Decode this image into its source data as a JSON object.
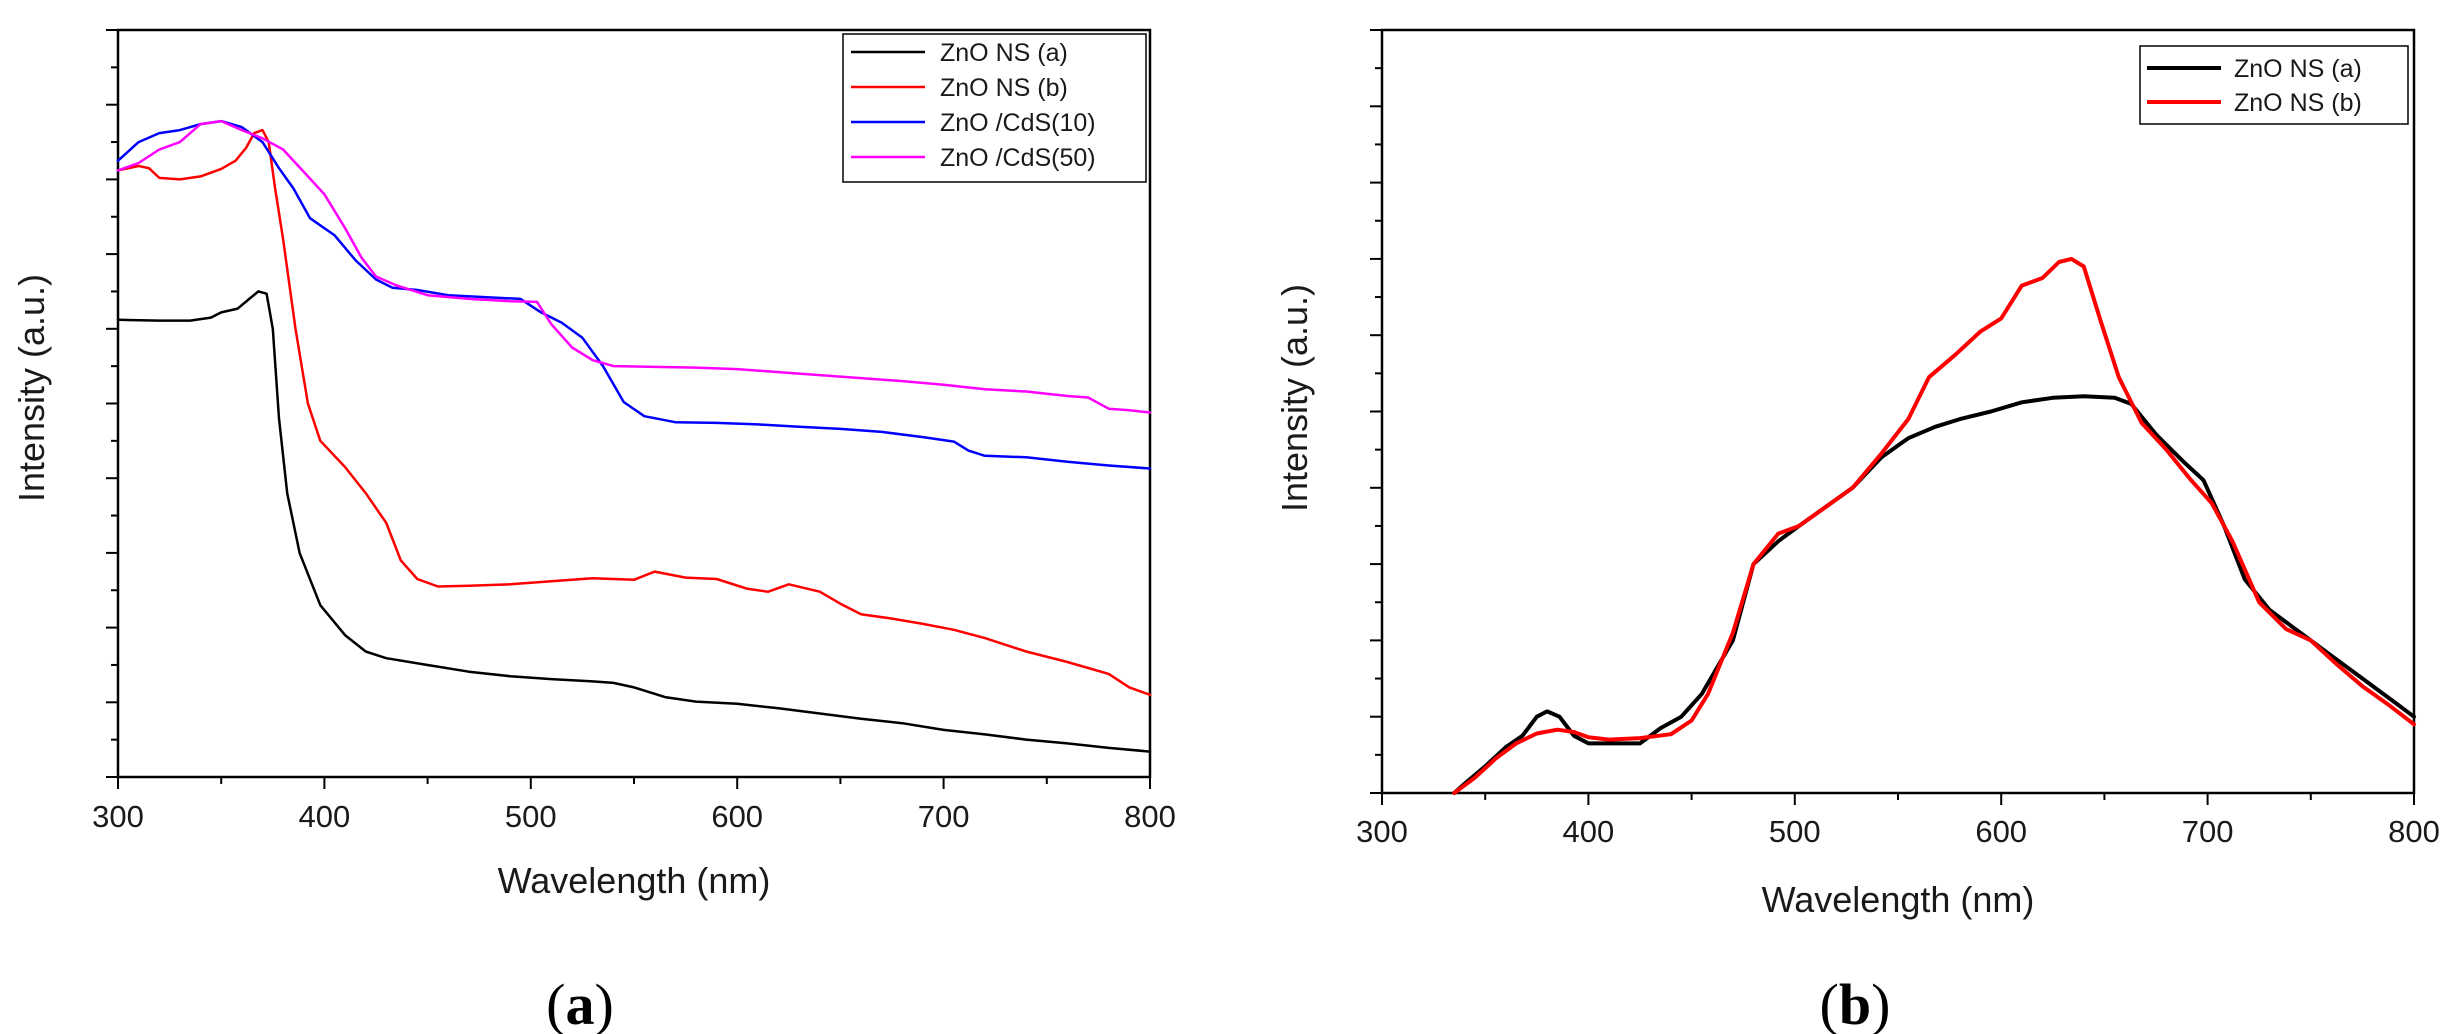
{
  "chart_data": [
    {
      "type": "line",
      "panel": "(a)",
      "xlabel": "Wavelength (nm)",
      "ylabel": "Intensity (a.u.)",
      "xlim": [
        300,
        800
      ],
      "ylim": [
        0,
        1
      ],
      "x_ticks": [
        300,
        400,
        500,
        600,
        700,
        800
      ],
      "y_tick_labels_shown": false,
      "grid": false,
      "legend": "top-right",
      "series": [
        {
          "name": "ZnO NS (a)",
          "color": "#000000",
          "points": [
            [
              300,
              0.612
            ],
            [
              320,
              0.611
            ],
            [
              335,
              0.611
            ],
            [
              345,
              0.615
            ],
            [
              350,
              0.622
            ],
            [
              358,
              0.627
            ],
            [
              364,
              0.641
            ],
            [
              368,
              0.65
            ],
            [
              372,
              0.647
            ],
            [
              375,
              0.6
            ],
            [
              378,
              0.48
            ],
            [
              382,
              0.38
            ],
            [
              388,
              0.3
            ],
            [
              398,
              0.23
            ],
            [
              410,
              0.19
            ],
            [
              420,
              0.168
            ],
            [
              430,
              0.159
            ],
            [
              450,
              0.15
            ],
            [
              470,
              0.141
            ],
            [
              490,
              0.135
            ],
            [
              510,
              0.131
            ],
            [
              530,
              0.128
            ],
            [
              540,
              0.126
            ],
            [
              550,
              0.12
            ],
            [
              565,
              0.107
            ],
            [
              580,
              0.101
            ],
            [
              600,
              0.098
            ],
            [
              620,
              0.092
            ],
            [
              640,
              0.085
            ],
            [
              660,
              0.078
            ],
            [
              680,
              0.072
            ],
            [
              700,
              0.063
            ],
            [
              720,
              0.057
            ],
            [
              740,
              0.05
            ],
            [
              760,
              0.045
            ],
            [
              780,
              0.039
            ],
            [
              800,
              0.034
            ]
          ]
        },
        {
          "name": "ZnO NS (b)",
          "color": "#ff0000",
          "points": [
            [
              300,
              0.812
            ],
            [
              310,
              0.818
            ],
            [
              315,
              0.815
            ],
            [
              320,
              0.802
            ],
            [
              330,
              0.8
            ],
            [
              340,
              0.804
            ],
            [
              350,
              0.814
            ],
            [
              357,
              0.825
            ],
            [
              362,
              0.842
            ],
            [
              366,
              0.862
            ],
            [
              370,
              0.866
            ],
            [
              373,
              0.85
            ],
            [
              376,
              0.79
            ],
            [
              380,
              0.72
            ],
            [
              386,
              0.6
            ],
            [
              392,
              0.5
            ],
            [
              398,
              0.45
            ],
            [
              410,
              0.415
            ],
            [
              420,
              0.38
            ],
            [
              430,
              0.34
            ],
            [
              437,
              0.29
            ],
            [
              445,
              0.265
            ],
            [
              455,
              0.255
            ],
            [
              470,
              0.256
            ],
            [
              490,
              0.258
            ],
            [
              510,
              0.262
            ],
            [
              530,
              0.266
            ],
            [
              550,
              0.264
            ],
            [
              560,
              0.275
            ],
            [
              575,
              0.267
            ],
            [
              590,
              0.265
            ],
            [
              605,
              0.252
            ],
            [
              615,
              0.248
            ],
            [
              625,
              0.258
            ],
            [
              640,
              0.248
            ],
            [
              650,
              0.232
            ],
            [
              660,
              0.218
            ],
            [
              675,
              0.212
            ],
            [
              690,
              0.205
            ],
            [
              705,
              0.197
            ],
            [
              720,
              0.186
            ],
            [
              740,
              0.168
            ],
            [
              760,
              0.154
            ],
            [
              780,
              0.138
            ],
            [
              790,
              0.12
            ],
            [
              800,
              0.11
            ]
          ]
        },
        {
          "name": "ZnO /CdS(10)",
          "color": "#0000ff",
          "points": [
            [
              300,
              0.825
            ],
            [
              310,
              0.85
            ],
            [
              320,
              0.862
            ],
            [
              330,
              0.866
            ],
            [
              340,
              0.874
            ],
            [
              350,
              0.878
            ],
            [
              360,
              0.87
            ],
            [
              370,
              0.85
            ],
            [
              378,
              0.815
            ],
            [
              385,
              0.788
            ],
            [
              393,
              0.748
            ],
            [
              405,
              0.725
            ],
            [
              415,
              0.692
            ],
            [
              425,
              0.666
            ],
            [
              433,
              0.655
            ],
            [
              445,
              0.652
            ],
            [
              460,
              0.645
            ],
            [
              480,
              0.642
            ],
            [
              495,
              0.64
            ],
            [
              505,
              0.622
            ],
            [
              515,
              0.608
            ],
            [
              525,
              0.588
            ],
            [
              535,
              0.55
            ],
            [
              545,
              0.502
            ],
            [
              555,
              0.483
            ],
            [
              570,
              0.475
            ],
            [
              590,
              0.474
            ],
            [
              610,
              0.472
            ],
            [
              630,
              0.469
            ],
            [
              650,
              0.466
            ],
            [
              670,
              0.462
            ],
            [
              690,
              0.455
            ],
            [
              705,
              0.449
            ],
            [
              712,
              0.437
            ],
            [
              720,
              0.43
            ],
            [
              740,
              0.428
            ],
            [
              760,
              0.422
            ],
            [
              780,
              0.417
            ],
            [
              800,
              0.413
            ]
          ]
        },
        {
          "name": "ZnO /CdS(50)",
          "color": "#ff00ff",
          "points": [
            [
              300,
              0.812
            ],
            [
              310,
              0.822
            ],
            [
              320,
              0.84
            ],
            [
              330,
              0.85
            ],
            [
              340,
              0.874
            ],
            [
              350,
              0.878
            ],
            [
              360,
              0.866
            ],
            [
              370,
              0.855
            ],
            [
              380,
              0.84
            ],
            [
              390,
              0.81
            ],
            [
              400,
              0.78
            ],
            [
              410,
              0.735
            ],
            [
              418,
              0.695
            ],
            [
              425,
              0.67
            ],
            [
              435,
              0.658
            ],
            [
              450,
              0.645
            ],
            [
              470,
              0.64
            ],
            [
              490,
              0.637
            ],
            [
              503,
              0.636
            ],
            [
              510,
              0.606
            ],
            [
              520,
              0.575
            ],
            [
              530,
              0.558
            ],
            [
              540,
              0.55
            ],
            [
              560,
              0.549
            ],
            [
              580,
              0.548
            ],
            [
              600,
              0.546
            ],
            [
              620,
              0.542
            ],
            [
              640,
              0.538
            ],
            [
              660,
              0.534
            ],
            [
              680,
              0.53
            ],
            [
              700,
              0.525
            ],
            [
              720,
              0.519
            ],
            [
              740,
              0.516
            ],
            [
              760,
              0.51
            ],
            [
              770,
              0.508
            ],
            [
              780,
              0.493
            ],
            [
              790,
              0.491
            ],
            [
              800,
              0.488
            ]
          ]
        }
      ]
    },
    {
      "type": "line",
      "panel": "(b)",
      "xlabel": "Wavelength (nm)",
      "ylabel": "Intensity (a.u.)",
      "xlim": [
        300,
        800
      ],
      "ylim": [
        0,
        1
      ],
      "x_ticks": [
        300,
        400,
        500,
        600,
        700,
        800
      ],
      "y_tick_labels_shown": false,
      "grid": false,
      "legend": "top-right",
      "series": [
        {
          "name": "ZnO NS (a)",
          "color": "#000000",
          "points": [
            [
              335,
              0.0
            ],
            [
              340,
              0.012
            ],
            [
              350,
              0.035
            ],
            [
              360,
              0.06
            ],
            [
              368,
              0.075
            ],
            [
              375,
              0.1
            ],
            [
              380,
              0.107
            ],
            [
              386,
              0.1
            ],
            [
              393,
              0.075
            ],
            [
              400,
              0.065
            ],
            [
              410,
              0.065
            ],
            [
              425,
              0.065
            ],
            [
              435,
              0.085
            ],
            [
              445,
              0.1
            ],
            [
              455,
              0.13
            ],
            [
              470,
              0.2
            ],
            [
              480,
              0.3
            ],
            [
              492,
              0.33
            ],
            [
              502,
              0.35
            ],
            [
              515,
              0.375
            ],
            [
              528,
              0.4
            ],
            [
              542,
              0.44
            ],
            [
              555,
              0.465
            ],
            [
              568,
              0.48
            ],
            [
              580,
              0.49
            ],
            [
              595,
              0.5
            ],
            [
              610,
              0.512
            ],
            [
              625,
              0.518
            ],
            [
              640,
              0.52
            ],
            [
              655,
              0.518
            ],
            [
              663,
              0.51
            ],
            [
              675,
              0.47
            ],
            [
              688,
              0.435
            ],
            [
              698,
              0.41
            ],
            [
              708,
              0.35
            ],
            [
              718,
              0.28
            ],
            [
              730,
              0.24
            ],
            [
              745,
              0.21
            ],
            [
              760,
              0.18
            ],
            [
              775,
              0.15
            ],
            [
              790,
              0.12
            ],
            [
              800,
              0.1
            ]
          ]
        },
        {
          "name": "ZnO NS (b)",
          "color": "#ff0000",
          "points": [
            [
              335,
              0.0
            ],
            [
              345,
              0.02
            ],
            [
              355,
              0.045
            ],
            [
              365,
              0.065
            ],
            [
              375,
              0.078
            ],
            [
              385,
              0.083
            ],
            [
              393,
              0.08
            ],
            [
              400,
              0.073
            ],
            [
              410,
              0.07
            ],
            [
              425,
              0.072
            ],
            [
              440,
              0.077
            ],
            [
              450,
              0.095
            ],
            [
              458,
              0.13
            ],
            [
              470,
              0.21
            ],
            [
              480,
              0.3
            ],
            [
              492,
              0.34
            ],
            [
              502,
              0.35
            ],
            [
              515,
              0.375
            ],
            [
              528,
              0.4
            ],
            [
              542,
              0.445
            ],
            [
              555,
              0.49
            ],
            [
              565,
              0.545
            ],
            [
              578,
              0.575
            ],
            [
              590,
              0.605
            ],
            [
              600,
              0.622
            ],
            [
              610,
              0.665
            ],
            [
              620,
              0.675
            ],
            [
              628,
              0.696
            ],
            [
              634,
              0.7
            ],
            [
              640,
              0.69
            ],
            [
              648,
              0.62
            ],
            [
              657,
              0.545
            ],
            [
              668,
              0.485
            ],
            [
              680,
              0.45
            ],
            [
              692,
              0.41
            ],
            [
              702,
              0.38
            ],
            [
              712,
              0.33
            ],
            [
              725,
              0.25
            ],
            [
              738,
              0.215
            ],
            [
              750,
              0.2
            ],
            [
              762,
              0.17
            ],
            [
              775,
              0.14
            ],
            [
              788,
              0.115
            ],
            [
              800,
              0.09
            ]
          ]
        }
      ]
    }
  ]
}
